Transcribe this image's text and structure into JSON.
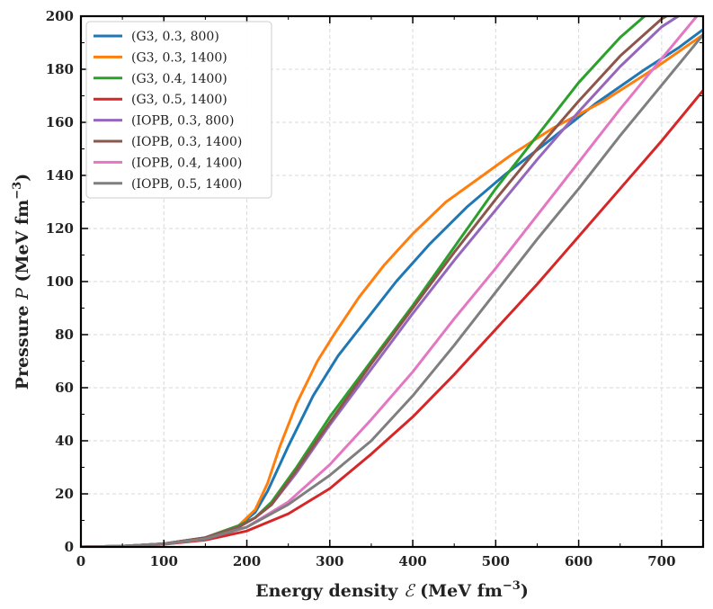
{
  "chart_data": {
    "type": "line",
    "title": "",
    "xlabel_main": "Energy density ",
    "xlabel_symbol": "ℰ",
    "xlabel_unit": " (MeV fm",
    "xlabel_exp": "−3",
    "xlabel_close": ")",
    "ylabel_main": "Pressure ",
    "ylabel_symbol": "P",
    "ylabel_unit": " (MeV fm",
    "ylabel_exp": "−3",
    "ylabel_close": ")",
    "xlim": [
      0,
      750
    ],
    "ylim": [
      0,
      200
    ],
    "xticks": [
      0,
      100,
      200,
      300,
      400,
      500,
      600,
      700
    ],
    "yticks": [
      0,
      20,
      40,
      60,
      80,
      100,
      120,
      140,
      160,
      180,
      200
    ],
    "grid": true,
    "legend_position": "top-left",
    "series": [
      {
        "name": "(G3, 0.3, 800)",
        "color": "#1f77b4",
        "x": [
          0,
          50,
          100,
          150,
          190,
          210,
          225,
          250,
          280,
          310,
          345,
          380,
          420,
          465,
          510,
          560,
          620,
          680,
          720,
          750
        ],
        "y": [
          0,
          0.3,
          1.2,
          3.5,
          8,
          13,
          21,
          38,
          57,
          72,
          86,
          100,
          114,
          128,
          140,
          152,
          167,
          180,
          188,
          195
        ]
      },
      {
        "name": "(G3, 0.3, 1400)",
        "color": "#ff7f0e",
        "x": [
          0,
          50,
          100,
          150,
          190,
          210,
          225,
          240,
          260,
          285,
          305,
          335,
          365,
          400,
          440,
          480,
          520,
          570,
          630,
          690,
          750
        ],
        "y": [
          0,
          0.3,
          1.2,
          3.5,
          8,
          14,
          24,
          38,
          54,
          70,
          80,
          94,
          106,
          118,
          130,
          139,
          148,
          158,
          168,
          180,
          193
        ]
      },
      {
        "name": "(G3, 0.4, 1400)",
        "color": "#2ca02c",
        "x": [
          0,
          50,
          100,
          150,
          190,
          210,
          230,
          260,
          300,
          350,
          400,
          450,
          500,
          550,
          600,
          650,
          683
        ],
        "y": [
          0,
          0.3,
          1.2,
          3.5,
          8,
          11,
          17,
          30,
          49,
          70,
          91,
          113,
          135,
          155,
          175,
          192,
          201
        ]
      },
      {
        "name": "(G3, 0.5, 1400)",
        "color": "#d62728",
        "x": [
          0,
          50,
          100,
          150,
          200,
          250,
          300,
          350,
          400,
          450,
          500,
          550,
          600,
          650,
          700,
          750
        ],
        "y": [
          0,
          0.2,
          1.0,
          2.6,
          6,
          12.5,
          22,
          35,
          49,
          65,
          82,
          99,
          117,
          135,
          153,
          172
        ]
      },
      {
        "name": "(IOPB, 0.3, 800)",
        "color": "#9467bd",
        "x": [
          0,
          50,
          100,
          150,
          190,
          210,
          230,
          260,
          300,
          350,
          400,
          450,
          500,
          550,
          600,
          650,
          700,
          730
        ],
        "y": [
          0,
          0.3,
          1.2,
          3.5,
          7.5,
          11,
          16,
          28,
          46,
          67,
          88,
          108,
          127,
          146,
          164,
          181,
          196,
          202
        ]
      },
      {
        "name": "(IOPB, 0.3, 1400)",
        "color": "#8c564b",
        "x": [
          0,
          50,
          100,
          150,
          190,
          210,
          230,
          260,
          300,
          350,
          400,
          450,
          500,
          550,
          600,
          650,
          700,
          722
        ],
        "y": [
          0,
          0.3,
          1.2,
          3.5,
          7.5,
          11,
          16,
          29,
          47,
          69,
          90,
          111,
          131,
          150,
          168,
          185,
          199,
          203
        ]
      },
      {
        "name": "(IOPB, 0.4, 1400)",
        "color": "#e377c2",
        "x": [
          0,
          50,
          100,
          150,
          200,
          250,
          300,
          350,
          400,
          450,
          500,
          550,
          600,
          650,
          700,
          745
        ],
        "y": [
          0,
          0.3,
          1.1,
          3.0,
          7.5,
          17,
          31,
          48,
          66,
          86,
          105,
          125,
          145,
          165,
          184,
          201
        ]
      },
      {
        "name": "(IOPB, 0.5, 1400)",
        "color": "#7f7f7f",
        "x": [
          0,
          50,
          100,
          150,
          200,
          250,
          300,
          350,
          400,
          450,
          500,
          550,
          600,
          650,
          700,
          750
        ],
        "y": [
          0,
          0.3,
          1.1,
          3.0,
          7.5,
          16,
          27,
          40,
          57,
          76,
          96,
          116,
          135,
          155,
          174,
          193
        ]
      }
    ]
  }
}
